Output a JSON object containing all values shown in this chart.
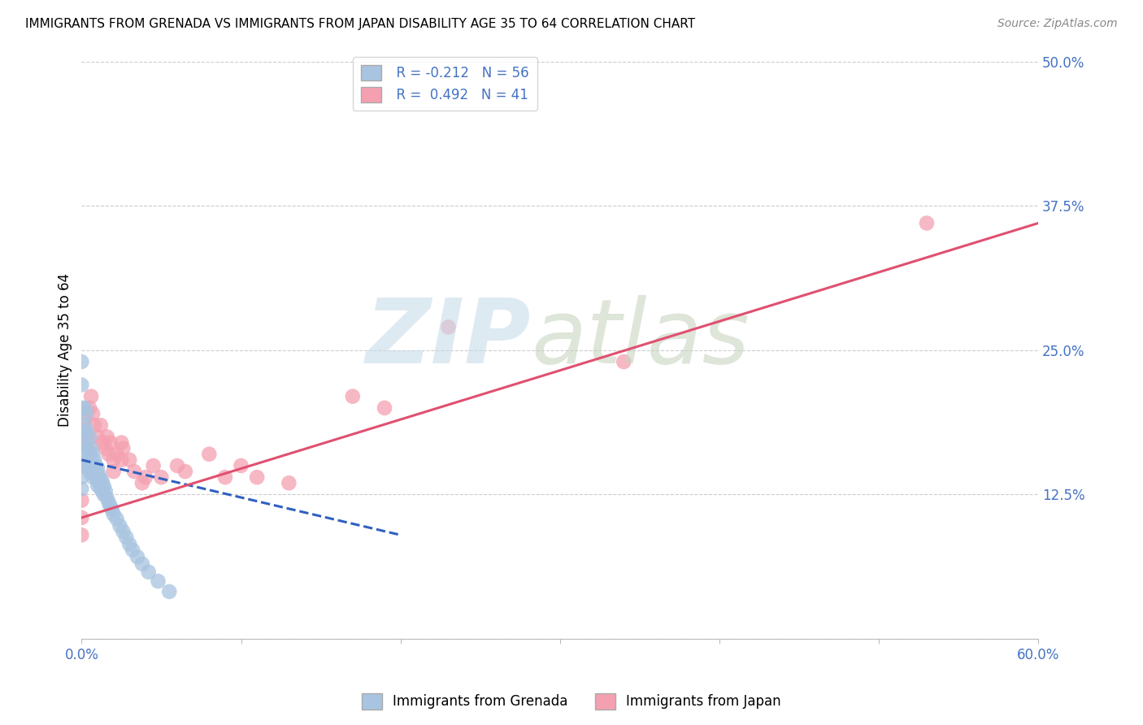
{
  "title": "IMMIGRANTS FROM GRENADA VS IMMIGRANTS FROM JAPAN DISABILITY AGE 35 TO 64 CORRELATION CHART",
  "source": "Source: ZipAtlas.com",
  "ylabel": "Disability Age 35 to 64",
  "xlim": [
    0.0,
    0.6
  ],
  "ylim": [
    0.0,
    0.5
  ],
  "xtick_positions": [
    0.0,
    0.1,
    0.2,
    0.3,
    0.4,
    0.5,
    0.6
  ],
  "xticklabels": [
    "0.0%",
    "",
    "",
    "",
    "",
    "",
    "60.0%"
  ],
  "ytick_right_labels": [
    "50.0%",
    "37.5%",
    "25.0%",
    "12.5%",
    ""
  ],
  "ytick_right_vals": [
    0.5,
    0.375,
    0.25,
    0.125,
    0.0
  ],
  "grenada_R": -0.212,
  "grenada_N": 56,
  "japan_R": 0.492,
  "japan_N": 41,
  "grenada_color": "#a8c4e0",
  "japan_color": "#f4a0b0",
  "grenada_line_color": "#3060c0",
  "japan_line_color": "#e05070",
  "grenada_x": [
    0.0,
    0.0,
    0.0,
    0.0,
    0.0,
    0.0,
    0.0,
    0.0,
    0.002,
    0.002,
    0.002,
    0.003,
    0.003,
    0.003,
    0.003,
    0.004,
    0.005,
    0.005,
    0.005,
    0.006,
    0.006,
    0.007,
    0.007,
    0.007,
    0.008,
    0.008,
    0.009,
    0.009,
    0.01,
    0.01,
    0.01,
    0.011,
    0.011,
    0.012,
    0.012,
    0.013,
    0.013,
    0.014,
    0.014,
    0.015,
    0.016,
    0.017,
    0.018,
    0.019,
    0.02,
    0.022,
    0.024,
    0.026,
    0.028,
    0.03,
    0.032,
    0.035,
    0.038,
    0.042,
    0.048,
    0.055
  ],
  "grenada_y": [
    0.24,
    0.22,
    0.2,
    0.18,
    0.16,
    0.15,
    0.14,
    0.13,
    0.2,
    0.185,
    0.17,
    0.195,
    0.18,
    0.165,
    0.15,
    0.155,
    0.175,
    0.16,
    0.145,
    0.165,
    0.15,
    0.16,
    0.15,
    0.14,
    0.155,
    0.145,
    0.15,
    0.14,
    0.148,
    0.14,
    0.133,
    0.142,
    0.135,
    0.138,
    0.13,
    0.136,
    0.128,
    0.132,
    0.125,
    0.128,
    0.122,
    0.118,
    0.115,
    0.112,
    0.108,
    0.104,
    0.098,
    0.093,
    0.088,
    0.082,
    0.077,
    0.071,
    0.065,
    0.058,
    0.05,
    0.041
  ],
  "japan_x": [
    0.0,
    0.0,
    0.0,
    0.002,
    0.003,
    0.004,
    0.005,
    0.006,
    0.007,
    0.008,
    0.01,
    0.012,
    0.013,
    0.015,
    0.016,
    0.017,
    0.018,
    0.02,
    0.02,
    0.022,
    0.025,
    0.025,
    0.026,
    0.03,
    0.033,
    0.038,
    0.04,
    0.045,
    0.05,
    0.06,
    0.065,
    0.08,
    0.09,
    0.1,
    0.11,
    0.13,
    0.17,
    0.19,
    0.23,
    0.34,
    0.53
  ],
  "japan_y": [
    0.12,
    0.105,
    0.09,
    0.19,
    0.175,
    0.165,
    0.2,
    0.21,
    0.195,
    0.185,
    0.175,
    0.185,
    0.17,
    0.165,
    0.175,
    0.16,
    0.17,
    0.155,
    0.145,
    0.16,
    0.17,
    0.155,
    0.165,
    0.155,
    0.145,
    0.135,
    0.14,
    0.15,
    0.14,
    0.15,
    0.145,
    0.16,
    0.14,
    0.15,
    0.14,
    0.135,
    0.21,
    0.2,
    0.27,
    0.24,
    0.36
  ],
  "japan_line_x_start": 0.0,
  "japan_line_x_end": 0.6,
  "japan_line_y_start": 0.105,
  "japan_line_y_end": 0.36,
  "grenada_line_x_start": 0.0,
  "grenada_line_x_end": 0.2,
  "grenada_line_y_start": 0.155,
  "grenada_line_y_end": 0.09
}
